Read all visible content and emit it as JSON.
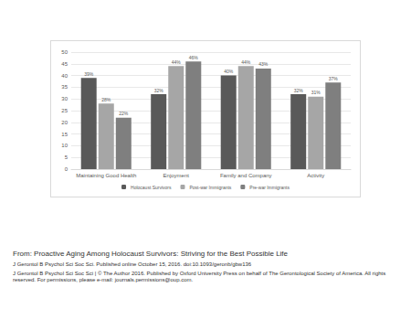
{
  "chart_data": {
    "type": "bar",
    "categories": [
      "Maintaining Good Health",
      "Enjoyment",
      "Family and Company",
      "Activity"
    ],
    "series": [
      {
        "name": "Holocaust Survivors",
        "color": "#595959",
        "values": [
          39,
          32,
          40,
          32
        ],
        "value_labels": [
          "39%",
          "32%",
          "40%",
          "32%"
        ]
      },
      {
        "name": "Post-war Immigrants",
        "color": "#a6a6a6",
        "values": [
          28,
          44,
          44,
          31
        ],
        "value_labels": [
          "28%",
          "44%",
          "44%",
          "31%"
        ]
      },
      {
        "name": "Pre-war Immigrants",
        "color": "#7f7f7f",
        "values": [
          22,
          46,
          43,
          37
        ],
        "value_labels": [
          "22%",
          "46%",
          "43%",
          "37%"
        ]
      }
    ],
    "ylim": [
      0,
      50
    ],
    "yticks": [
      0,
      5,
      10,
      15,
      20,
      25,
      30,
      35,
      40,
      45,
      50
    ],
    "grid": true,
    "legend": "bottom",
    "data_labels": true,
    "annotations": [
      "From: Proactive Aging Among Holocaust Survivors: Striving for the Best Possible Life",
      "J Gerontol B Psychol Sci Soc Sci. Published online October 15, 2016. doi:10.1093/geronb/gbw136",
      "J Gerontol B Psychol Sci Soc Sci | © The Author 2016. Published by Oxford University Press on behalf of The Gerontological Society of America. All rights reserved. For permissions, please e-mail: journals.permissions@oup.com."
    ]
  }
}
